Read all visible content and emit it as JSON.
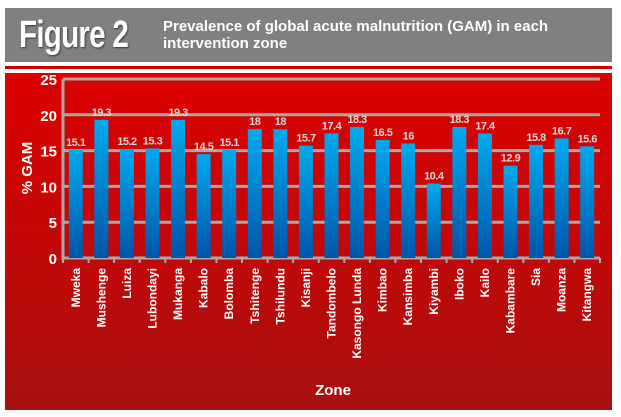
{
  "header": {
    "figure_label": "Figure 2",
    "title": "Prevalence of global acute malnutrition (GAM) in each intervention zone"
  },
  "chart_data": {
    "type": "bar",
    "title": "Prevalence of global acute malnutrition (GAM) in each intervention zone",
    "xlabel": "Zone",
    "ylabel": "% GAM",
    "ylim": [
      0,
      25
    ],
    "yticks": [
      0,
      5,
      10,
      15,
      20,
      25
    ],
    "grid": true,
    "categories": [
      "Mweka",
      "Mushenge",
      "Luiza",
      "Lubondayi",
      "Mukanga",
      "Kabalo",
      "Bolomba",
      "Tshitenge",
      "Tshilundu",
      "Kisanji",
      "Tandombelo",
      "Kasongo Lunda",
      "Kimbao",
      "Kansimba",
      "Kiyambi",
      "Iboko",
      "Kailo",
      "Kabambare",
      "Sia",
      "Moanza",
      "Kitangwa"
    ],
    "values": [
      15.1,
      19.3,
      15.2,
      15.3,
      19.3,
      14.5,
      15.1,
      18,
      18,
      15.7,
      17.4,
      18.3,
      16.5,
      16,
      10.4,
      18.3,
      17.4,
      12.9,
      15.8,
      16.7,
      15.6
    ],
    "colors": {
      "bar_top": "#00aaee",
      "bar_bottom": "#0055aa",
      "grid": "#a8a8a8",
      "label": "#d8d8d8"
    }
  }
}
